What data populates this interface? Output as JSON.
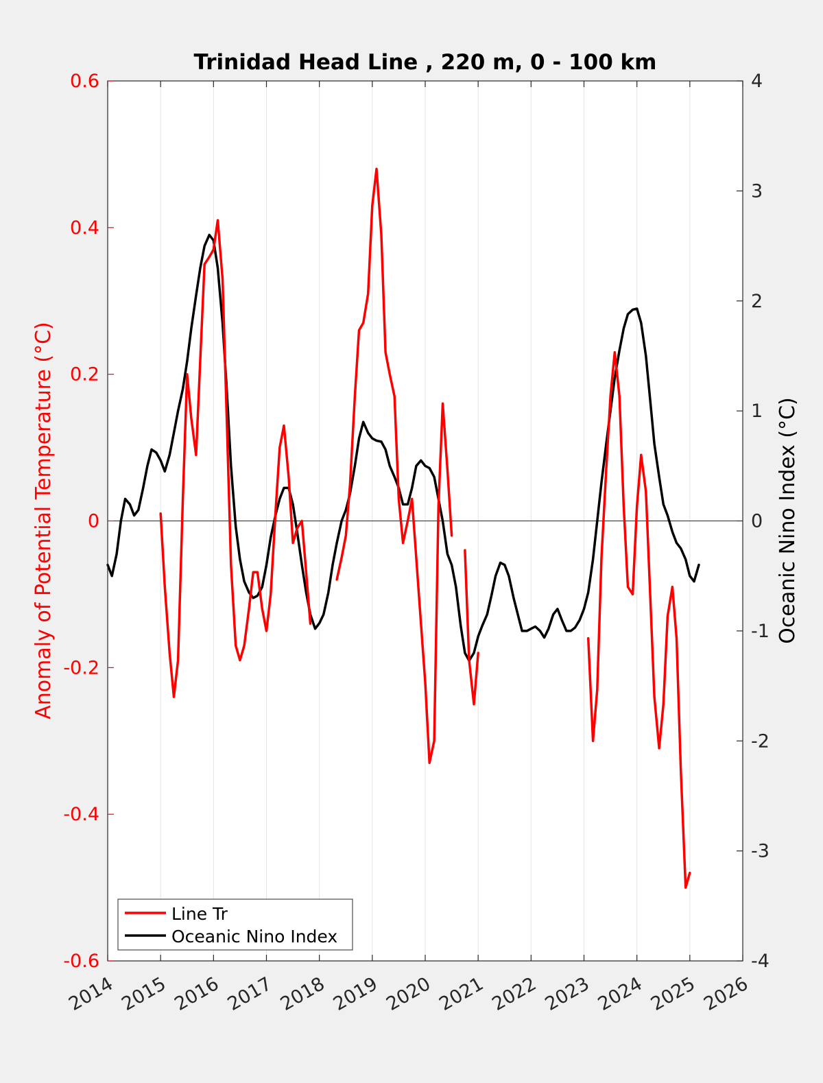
{
  "chart_data": {
    "type": "line",
    "title": "Trinidad Head Line , 220 m, 0 - 100 km",
    "xlabel": "",
    "x_ticks": [
      "2014",
      "2015",
      "2016",
      "2017",
      "2018",
      "2019",
      "2020",
      "2021",
      "2022",
      "2023",
      "2024",
      "2025",
      "2026"
    ],
    "xlim": [
      2014,
      2026
    ],
    "left_axis": {
      "label": "Anomaly of Potential Temperature (°C)",
      "ylim": [
        -0.6,
        0.6
      ],
      "ticks": [
        "-0.6",
        "-0.4",
        "-0.2",
        "0",
        "0.2",
        "0.4",
        "0.6"
      ],
      "color": "#ff0000"
    },
    "right_axis": {
      "label": "Oceanic Nino Index (°C)",
      "ylim": [
        -4,
        4
      ],
      "ticks": [
        "-4",
        "-3",
        "-2",
        "-1",
        "0",
        "1",
        "2",
        "3",
        "4"
      ],
      "color": "#000000"
    },
    "grid": "vertical",
    "zero_line": true,
    "legend_position": "bottom-left",
    "series": [
      {
        "name": "Line Tr",
        "axis": "left",
        "color": "#ff0000",
        "segments": [
          [
            [
              2015.0,
              0.01
            ],
            [
              2015.08,
              -0.09
            ],
            [
              2015.17,
              -0.18
            ],
            [
              2015.25,
              -0.24
            ],
            [
              2015.33,
              -0.19
            ],
            [
              2015.42,
              0.03
            ],
            [
              2015.5,
              0.2
            ],
            [
              2015.58,
              0.14
            ],
            [
              2015.67,
              0.09
            ],
            [
              2015.75,
              0.22
            ],
            [
              2015.83,
              0.35
            ],
            [
              2015.92,
              0.36
            ],
            [
              2016.0,
              0.37
            ],
            [
              2016.08,
              0.41
            ],
            [
              2016.17,
              0.33
            ],
            [
              2016.25,
              0.14
            ],
            [
              2016.33,
              -0.06
            ],
            [
              2016.42,
              -0.17
            ],
            [
              2016.5,
              -0.19
            ],
            [
              2016.58,
              -0.17
            ],
            [
              2016.67,
              -0.12
            ],
            [
              2016.75,
              -0.07
            ],
            [
              2016.83,
              -0.07
            ],
            [
              2016.92,
              -0.12
            ],
            [
              2017.0,
              -0.15
            ],
            [
              2017.08,
              -0.1
            ],
            [
              2017.17,
              0.01
            ],
            [
              2017.25,
              0.1
            ],
            [
              2017.33,
              0.13
            ],
            [
              2017.42,
              0.06
            ],
            [
              2017.5,
              -0.03
            ],
            [
              2017.58,
              -0.01
            ],
            [
              2017.67,
              0.0
            ],
            [
              2017.75,
              -0.07
            ],
            [
              2017.83,
              -0.14
            ]
          ],
          [
            [
              2018.33,
              -0.08
            ],
            [
              2018.42,
              -0.05
            ],
            [
              2018.5,
              -0.02
            ],
            [
              2018.58,
              0.05
            ],
            [
              2018.67,
              0.17
            ],
            [
              2018.75,
              0.26
            ],
            [
              2018.83,
              0.27
            ],
            [
              2018.92,
              0.31
            ],
            [
              2019.0,
              0.43
            ],
            [
              2019.08,
              0.48
            ],
            [
              2019.17,
              0.39
            ],
            [
              2019.25,
              0.23
            ],
            [
              2019.33,
              0.2
            ],
            [
              2019.42,
              0.17
            ],
            [
              2019.5,
              0.03
            ],
            [
              2019.58,
              -0.03
            ],
            [
              2019.67,
              0.0
            ],
            [
              2019.75,
              0.03
            ],
            [
              2019.83,
              -0.05
            ],
            [
              2019.92,
              -0.14
            ],
            [
              2020.0,
              -0.22
            ],
            [
              2020.08,
              -0.33
            ],
            [
              2020.17,
              -0.3
            ],
            [
              2020.25,
              0.02
            ],
            [
              2020.33,
              0.16
            ],
            [
              2020.42,
              0.07
            ],
            [
              2020.5,
              -0.02
            ]
          ],
          [
            [
              2020.75,
              -0.04
            ],
            [
              2020.83,
              -0.19
            ],
            [
              2020.92,
              -0.25
            ],
            [
              2021.0,
              -0.18
            ]
          ],
          [
            [
              2023.08,
              -0.16
            ],
            [
              2023.17,
              -0.3
            ],
            [
              2023.25,
              -0.23
            ],
            [
              2023.33,
              -0.05
            ],
            [
              2023.42,
              0.07
            ],
            [
              2023.5,
              0.17
            ],
            [
              2023.58,
              0.23
            ],
            [
              2023.67,
              0.17
            ],
            [
              2023.75,
              0.02
            ],
            [
              2023.83,
              -0.09
            ],
            [
              2023.92,
              -0.1
            ],
            [
              2024.0,
              0.02
            ],
            [
              2024.08,
              0.09
            ],
            [
              2024.17,
              0.04
            ],
            [
              2024.25,
              -0.1
            ],
            [
              2024.33,
              -0.24
            ],
            [
              2024.42,
              -0.31
            ],
            [
              2024.5,
              -0.25
            ],
            [
              2024.58,
              -0.13
            ],
            [
              2024.67,
              -0.09
            ],
            [
              2024.75,
              -0.16
            ],
            [
              2024.83,
              -0.34
            ],
            [
              2024.92,
              -0.5
            ],
            [
              2025.0,
              -0.48
            ]
          ]
        ]
      },
      {
        "name": "Oceanic Nino Index",
        "axis": "right",
        "color": "#000000",
        "segments": [
          [
            [
              2014.0,
              -0.4
            ],
            [
              2014.08,
              -0.5
            ],
            [
              2014.17,
              -0.3
            ],
            [
              2014.25,
              0.0
            ],
            [
              2014.33,
              0.2
            ],
            [
              2014.42,
              0.15
            ],
            [
              2014.5,
              0.05
            ],
            [
              2014.58,
              0.1
            ],
            [
              2014.67,
              0.3
            ],
            [
              2014.75,
              0.5
            ],
            [
              2014.83,
              0.65
            ],
            [
              2014.92,
              0.62
            ],
            [
              2015.0,
              0.55
            ],
            [
              2015.08,
              0.45
            ],
            [
              2015.17,
              0.6
            ],
            [
              2015.25,
              0.8
            ],
            [
              2015.33,
              1.0
            ],
            [
              2015.42,
              1.2
            ],
            [
              2015.5,
              1.45
            ],
            [
              2015.58,
              1.75
            ],
            [
              2015.67,
              2.05
            ],
            [
              2015.75,
              2.3
            ],
            [
              2015.83,
              2.5
            ],
            [
              2015.92,
              2.6
            ],
            [
              2016.0,
              2.55
            ],
            [
              2016.08,
              2.3
            ],
            [
              2016.17,
              1.8
            ],
            [
              2016.25,
              1.2
            ],
            [
              2016.33,
              0.5
            ],
            [
              2016.42,
              -0.05
            ],
            [
              2016.5,
              -0.35
            ],
            [
              2016.58,
              -0.55
            ],
            [
              2016.67,
              -0.65
            ],
            [
              2016.75,
              -0.7
            ],
            [
              2016.83,
              -0.68
            ],
            [
              2016.92,
              -0.6
            ],
            [
              2017.0,
              -0.4
            ],
            [
              2017.08,
              -0.15
            ],
            [
              2017.17,
              0.05
            ],
            [
              2017.25,
              0.2
            ],
            [
              2017.33,
              0.3
            ],
            [
              2017.42,
              0.3
            ],
            [
              2017.5,
              0.15
            ],
            [
              2017.58,
              -0.1
            ],
            [
              2017.67,
              -0.4
            ],
            [
              2017.75,
              -0.65
            ],
            [
              2017.83,
              -0.85
            ],
            [
              2017.92,
              -0.98
            ],
            [
              2018.0,
              -0.93
            ],
            [
              2018.08,
              -0.85
            ],
            [
              2018.17,
              -0.65
            ],
            [
              2018.25,
              -0.4
            ],
            [
              2018.33,
              -0.2
            ],
            [
              2018.42,
              0.0
            ],
            [
              2018.5,
              0.1
            ],
            [
              2018.58,
              0.25
            ],
            [
              2018.67,
              0.5
            ],
            [
              2018.75,
              0.75
            ],
            [
              2018.83,
              0.9
            ],
            [
              2018.92,
              0.8
            ],
            [
              2019.0,
              0.75
            ],
            [
              2019.08,
              0.73
            ],
            [
              2019.17,
              0.72
            ],
            [
              2019.25,
              0.65
            ],
            [
              2019.33,
              0.5
            ],
            [
              2019.42,
              0.4
            ],
            [
              2019.5,
              0.3
            ],
            [
              2019.58,
              0.15
            ],
            [
              2019.67,
              0.15
            ],
            [
              2019.75,
              0.3
            ],
            [
              2019.83,
              0.5
            ],
            [
              2019.92,
              0.55
            ],
            [
              2020.0,
              0.5
            ],
            [
              2020.08,
              0.48
            ],
            [
              2020.17,
              0.4
            ],
            [
              2020.25,
              0.2
            ],
            [
              2020.33,
              0.0
            ],
            [
              2020.42,
              -0.3
            ],
            [
              2020.5,
              -0.4
            ],
            [
              2020.58,
              -0.6
            ],
            [
              2020.67,
              -0.95
            ],
            [
              2020.75,
              -1.2
            ],
            [
              2020.83,
              -1.27
            ],
            [
              2020.92,
              -1.2
            ],
            [
              2021.0,
              -1.05
            ],
            [
              2021.08,
              -0.95
            ],
            [
              2021.17,
              -0.85
            ],
            [
              2021.25,
              -0.68
            ],
            [
              2021.33,
              -0.5
            ],
            [
              2021.42,
              -0.38
            ],
            [
              2021.5,
              -0.4
            ],
            [
              2021.58,
              -0.5
            ],
            [
              2021.67,
              -0.7
            ],
            [
              2021.75,
              -0.85
            ],
            [
              2021.83,
              -1.0
            ],
            [
              2021.92,
              -1.0
            ],
            [
              2022.0,
              -0.98
            ],
            [
              2022.08,
              -0.96
            ],
            [
              2022.17,
              -1.0
            ],
            [
              2022.25,
              -1.06
            ],
            [
              2022.33,
              -0.98
            ],
            [
              2022.42,
              -0.85
            ],
            [
              2022.5,
              -0.8
            ],
            [
              2022.58,
              -0.9
            ],
            [
              2022.67,
              -1.0
            ],
            [
              2022.75,
              -1.0
            ],
            [
              2022.83,
              -0.97
            ],
            [
              2022.92,
              -0.9
            ],
            [
              2023.0,
              -0.8
            ],
            [
              2023.08,
              -0.65
            ],
            [
              2023.17,
              -0.35
            ],
            [
              2023.25,
              0.0
            ],
            [
              2023.33,
              0.35
            ],
            [
              2023.42,
              0.7
            ],
            [
              2023.5,
              1.0
            ],
            [
              2023.58,
              1.3
            ],
            [
              2023.67,
              1.55
            ],
            [
              2023.75,
              1.75
            ],
            [
              2023.83,
              1.88
            ],
            [
              2023.92,
              1.92
            ],
            [
              2024.0,
              1.93
            ],
            [
              2024.08,
              1.8
            ],
            [
              2024.17,
              1.5
            ],
            [
              2024.25,
              1.1
            ],
            [
              2024.33,
              0.7
            ],
            [
              2024.42,
              0.4
            ],
            [
              2024.5,
              0.15
            ],
            [
              2024.58,
              0.05
            ],
            [
              2024.67,
              -0.1
            ],
            [
              2024.75,
              -0.2
            ],
            [
              2024.83,
              -0.25
            ],
            [
              2024.92,
              -0.35
            ],
            [
              2025.0,
              -0.5
            ],
            [
              2025.08,
              -0.55
            ],
            [
              2025.17,
              -0.4
            ]
          ]
        ]
      }
    ]
  }
}
